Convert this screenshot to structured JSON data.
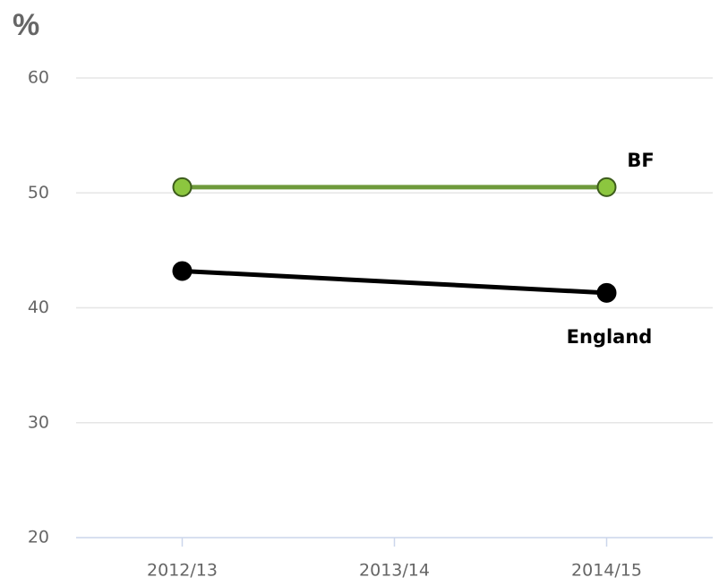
{
  "chart_data": {
    "type": "line",
    "y_label": "%",
    "categories": [
      "2012/13",
      "2013/14",
      "2014/15"
    ],
    "series": [
      {
        "name": "BF",
        "color": "#6e9a3b",
        "marker_color": "#8cc63f",
        "values": [
          50.5,
          null,
          50.5
        ]
      },
      {
        "name": "England",
        "color": "#000000",
        "marker_color": "#000000",
        "values": [
          43.2,
          null,
          41.3
        ]
      }
    ],
    "connect_gaps": true,
    "ylim": [
      20,
      60
    ],
    "yticks": [
      20,
      30,
      40,
      50,
      60
    ],
    "grid": true
  }
}
